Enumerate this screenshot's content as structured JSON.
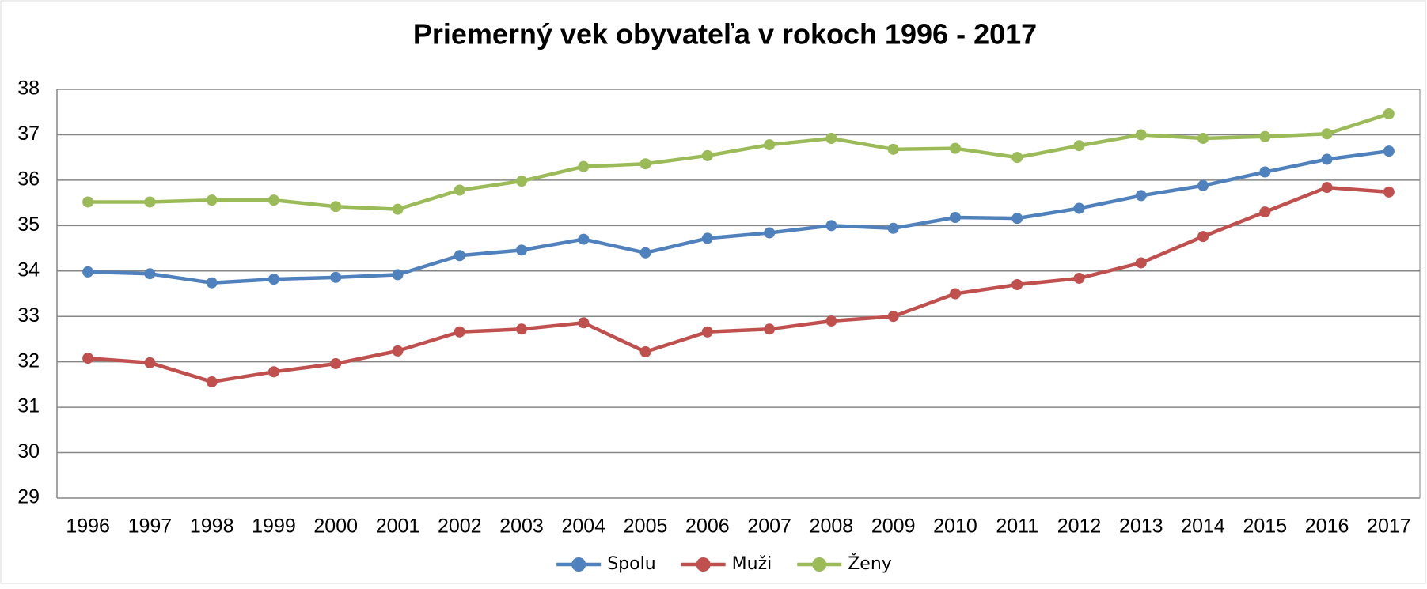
{
  "chart_data": {
    "type": "line",
    "title": "Priemerný vek obyvateľa v rokoch 1996 - 2017",
    "categories": [
      "1996",
      "1997",
      "1998",
      "1999",
      "2000",
      "2001",
      "2002",
      "2003",
      "2004",
      "2005",
      "2006",
      "2007",
      "2008",
      "2009",
      "2010",
      "2011",
      "2012",
      "2013",
      "2014",
      "2015",
      "2016",
      "2017"
    ],
    "series": [
      {
        "name": "Spolu",
        "color": "#4f81bd",
        "values": [
          33.98,
          33.94,
          33.74,
          33.82,
          33.86,
          33.92,
          34.34,
          34.46,
          34.7,
          34.4,
          34.72,
          34.84,
          35.0,
          34.94,
          35.18,
          35.16,
          35.38,
          35.66,
          35.88,
          36.18,
          36.46,
          36.64
        ]
      },
      {
        "name": "Muži",
        "color": "#c0504d",
        "values": [
          32.08,
          31.98,
          31.56,
          31.78,
          31.96,
          32.24,
          32.66,
          32.72,
          32.86,
          32.22,
          32.66,
          32.72,
          32.9,
          33.0,
          33.5,
          33.7,
          33.84,
          34.18,
          34.76,
          35.3,
          35.84,
          35.74
        ]
      },
      {
        "name": "Ženy",
        "color": "#9bbb59",
        "values": [
          35.52,
          35.52,
          35.56,
          35.56,
          35.42,
          35.36,
          35.78,
          35.98,
          36.3,
          36.36,
          36.54,
          36.78,
          36.92,
          36.68,
          36.7,
          36.5,
          36.76,
          37.0,
          36.92,
          36.96,
          37.02,
          37.46
        ]
      }
    ],
    "ylim": [
      29,
      38
    ],
    "yticks": [
      29,
      30,
      31,
      32,
      33,
      34,
      35,
      36,
      37,
      38
    ],
    "grid": true,
    "legend": "bottom"
  }
}
